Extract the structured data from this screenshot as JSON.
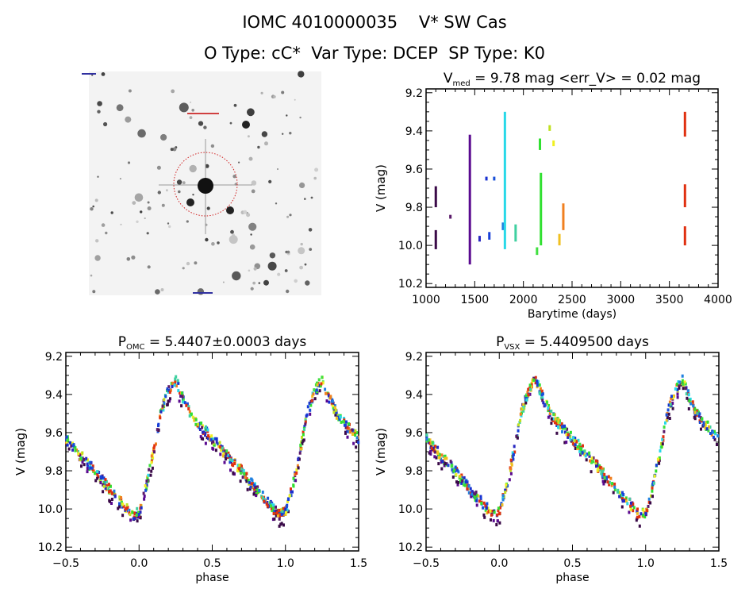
{
  "header": {
    "title": "IOMC 4010000035    V* SW Cas",
    "subtitle": "O Type: cC*  Var Type: DCEP  SP Type: K0"
  },
  "chart_data": [
    {
      "type": "image",
      "name": "finding-chart",
      "description_label": "sky image"
    },
    {
      "type": "scatter",
      "name": "light-curve-time",
      "title_main": "V",
      "title_sub": "med",
      "title_rest": " = 9.78 mag <err_V> = 0.02 mag",
      "xlabel": "Barytime (days)",
      "ylabel": "V (mag)",
      "xlim": [
        1000,
        4000
      ],
      "ylim": [
        9.2,
        10.2
      ],
      "y_inverted": true,
      "xticks": [
        1000,
        1500,
        2000,
        2500,
        3000,
        3500,
        4000
      ],
      "yticks": [
        "9.2",
        "9.4",
        "9.6",
        "9.8",
        "10.0",
        "10.2"
      ],
      "segments": [
        {
          "t": 1100,
          "v": [
            9.69,
            9.8
          ],
          "color": "#3a0a48"
        },
        {
          "t": 1100,
          "v": [
            9.92,
            10.02
          ],
          "color": "#3a0a48"
        },
        {
          "t": 1250,
          "v": [
            9.84,
            9.86
          ],
          "color": "#5a1a6a"
        },
        {
          "t": 1450,
          "v": [
            9.42,
            10.1
          ],
          "color": "#5a0a90"
        },
        {
          "t": 1550,
          "v": [
            9.95,
            9.98
          ],
          "color": "#2828c0"
        },
        {
          "t": 1620,
          "v": [
            9.64,
            9.66
          ],
          "color": "#1830d0"
        },
        {
          "t": 1650,
          "v": [
            9.93,
            9.97
          ],
          "color": "#1840d8"
        },
        {
          "t": 1700,
          "v": [
            9.64,
            9.66
          ],
          "color": "#1850d8"
        },
        {
          "t": 1790,
          "v": [
            9.88,
            9.92
          ],
          "color": "#2080e0"
        },
        {
          "t": 1810,
          "v": [
            9.3,
            10.02
          ],
          "color": "#28d8e8"
        },
        {
          "t": 1920,
          "v": [
            9.89,
            9.98
          ],
          "color": "#40d0a0"
        },
        {
          "t": 2140,
          "v": [
            10.01,
            10.05
          ],
          "color": "#40e040"
        },
        {
          "t": 2170,
          "v": [
            9.44,
            9.5
          ],
          "color": "#30e030"
        },
        {
          "t": 2180,
          "v": [
            9.62,
            10.0
          ],
          "color": "#30e030"
        },
        {
          "t": 2270,
          "v": [
            9.37,
            9.4
          ],
          "color": "#c0e020"
        },
        {
          "t": 2310,
          "v": [
            9.45,
            9.48
          ],
          "color": "#f0f020"
        },
        {
          "t": 2370,
          "v": [
            9.94,
            10.0
          ],
          "color": "#f0c020"
        },
        {
          "t": 2410,
          "v": [
            9.78,
            9.92
          ],
          "color": "#f08020"
        },
        {
          "t": 3660,
          "v": [
            9.3,
            9.43
          ],
          "color": "#e03010"
        },
        {
          "t": 3660,
          "v": [
            9.68,
            9.8
          ],
          "color": "#e03010"
        },
        {
          "t": 3660,
          "v": [
            9.9,
            10.0
          ],
          "color": "#e03010"
        }
      ]
    },
    {
      "type": "scatter",
      "name": "phase-curve-omc",
      "title_main": "P",
      "title_sub": "OMC",
      "title_rest": " = 5.4407±0.0003 days",
      "xlabel": "phase",
      "ylabel": "V (mag)",
      "xlim": [
        -0.5,
        1.5
      ],
      "ylim": [
        9.2,
        10.2
      ],
      "y_inverted": true,
      "xticks": [
        "-0.5",
        "0.0",
        "0.5",
        "1.0",
        "1.5"
      ],
      "yticks": [
        "9.2",
        "9.4",
        "9.6",
        "9.8",
        "10.0",
        "10.2"
      ],
      "template": [
        [
          0.0,
          10.02
        ],
        [
          0.05,
          9.88
        ],
        [
          0.1,
          9.7
        ],
        [
          0.15,
          9.5
        ],
        [
          0.2,
          9.38
        ],
        [
          0.25,
          9.32
        ],
        [
          0.3,
          9.42
        ],
        [
          0.35,
          9.5
        ],
        [
          0.4,
          9.55
        ],
        [
          0.5,
          9.63
        ],
        [
          0.6,
          9.72
        ],
        [
          0.7,
          9.8
        ],
        [
          0.8,
          9.9
        ],
        [
          0.9,
          9.98
        ],
        [
          0.95,
          10.03
        ],
        [
          1.0,
          10.02
        ]
      ]
    },
    {
      "type": "scatter",
      "name": "phase-curve-vsx",
      "title_main": "P",
      "title_sub": "VSX",
      "title_rest": " = 5.4409500 days",
      "xlabel": "phase",
      "ylabel": "V (mag)",
      "xlim": [
        -0.5,
        1.5
      ],
      "ylim": [
        9.2,
        10.2
      ],
      "y_inverted": true,
      "xticks": [
        "-0.5",
        "0.0",
        "0.5",
        "1.0",
        "1.5"
      ],
      "yticks": [
        "9.2",
        "9.4",
        "9.6",
        "9.8",
        "10.0",
        "10.2"
      ],
      "template": [
        [
          0.0,
          10.02
        ],
        [
          0.05,
          9.88
        ],
        [
          0.1,
          9.7
        ],
        [
          0.15,
          9.5
        ],
        [
          0.2,
          9.38
        ],
        [
          0.25,
          9.32
        ],
        [
          0.3,
          9.42
        ],
        [
          0.35,
          9.5
        ],
        [
          0.4,
          9.55
        ],
        [
          0.5,
          9.63
        ],
        [
          0.6,
          9.72
        ],
        [
          0.7,
          9.8
        ],
        [
          0.8,
          9.9
        ],
        [
          0.9,
          9.98
        ],
        [
          0.95,
          10.03
        ],
        [
          1.0,
          10.02
        ]
      ]
    }
  ]
}
